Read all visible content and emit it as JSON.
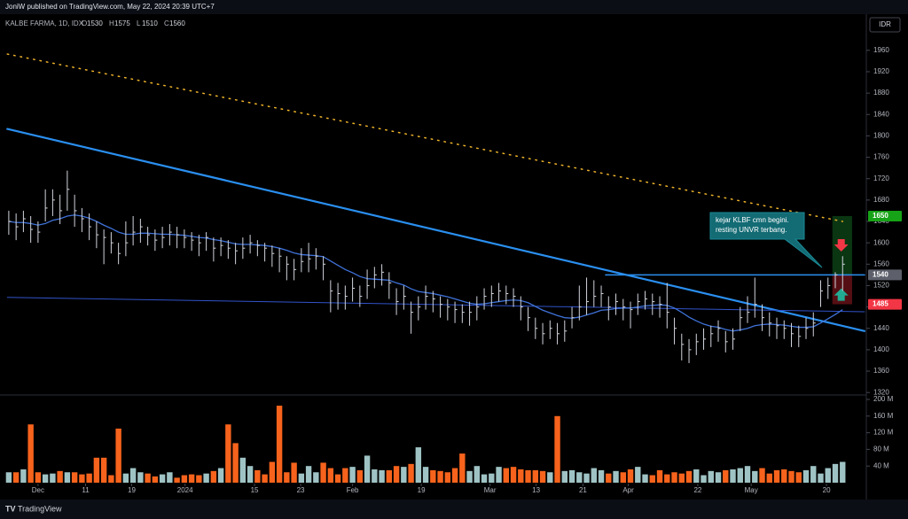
{
  "header": {
    "publisher": "JoniW published on TradingView.com, May 22, 2024 20:39 UTC+7",
    "brand": "TradingView"
  },
  "chart_data": {
    "type": "ohlc",
    "symbol": "KALBE FARMA, 1D, IDX",
    "ohlc": [
      {
        "label": "O",
        "value": 1530
      },
      {
        "label": "H",
        "value": 1575
      },
      {
        "label": "L",
        "value": 1510
      },
      {
        "label": "C",
        "value": 1560
      }
    ],
    "currency": "IDR",
    "xlim": [
      -1.2,
      117
    ],
    "xticks": [
      {
        "value": 4,
        "label": "Dec"
      },
      {
        "value": 10.5,
        "label": "11"
      },
      {
        "value": 16.8,
        "label": "19"
      },
      {
        "value": 24.1,
        "label": "2024"
      },
      {
        "value": 33.6,
        "label": "15"
      },
      {
        "value": 39.9,
        "label": "23"
      },
      {
        "value": 47,
        "label": "Feb"
      },
      {
        "value": 56.4,
        "label": "19"
      },
      {
        "value": 65.8,
        "label": "Mar"
      },
      {
        "value": 72.1,
        "label": "13"
      },
      {
        "value": 78.5,
        "label": "21"
      },
      {
        "value": 84.7,
        "label": "Apr"
      },
      {
        "value": 94.2,
        "label": "22"
      },
      {
        "value": 101.5,
        "label": "May"
      },
      {
        "value": 111.8,
        "label": "20"
      }
    ],
    "ylim": [
      1317,
      2021
    ],
    "yticks": [
      1320,
      1360,
      1400,
      1440,
      1480,
      1520,
      1560,
      1600,
      1640,
      1680,
      1720,
      1760,
      1800,
      1840,
      1880,
      1920,
      1960
    ],
    "bar_color": "#d1d4dc",
    "high": [
      1660,
      1655,
      1660,
      1650,
      1640,
      1700,
      1700,
      1690,
      1735,
      1690,
      1665,
      1655,
      1640,
      1625,
      1620,
      1600,
      1640,
      1650,
      1645,
      1630,
      1625,
      1630,
      1635,
      1630,
      1625,
      1620,
      1615,
      1620,
      1610,
      1610,
      1605,
      1600,
      1610,
      1615,
      1605,
      1600,
      1595,
      1590,
      1575,
      1570,
      1590,
      1600,
      1590,
      1575,
      1530,
      1525,
      1520,
      1535,
      1520,
      1550,
      1555,
      1560,
      1545,
      1515,
      1520,
      1490,
      1500,
      1520,
      1510,
      1500,
      1495,
      1490,
      1485,
      1490,
      1500,
      1515,
      1520,
      1525,
      1520,
      1515,
      1500,
      1480,
      1460,
      1450,
      1455,
      1450,
      1455,
      1480,
      1520,
      1535,
      1530,
      1520,
      1500,
      1505,
      1495,
      1490,
      1505,
      1510,
      1505,
      1500,
      1525,
      1460,
      1430,
      1420,
      1430,
      1440,
      1445,
      1455,
      1435,
      1440,
      1480,
      1500,
      1535,
      1485,
      1470,
      1460,
      1455,
      1450,
      1445,
      1460,
      1470,
      1530,
      1535,
      1545,
      1575
    ],
    "low": [
      1615,
      1605,
      1620,
      1600,
      1600,
      1640,
      1650,
      1635,
      1660,
      1630,
      1620,
      1605,
      1590,
      1560,
      1580,
      1560,
      1575,
      1595,
      1600,
      1595,
      1585,
      1590,
      1595,
      1590,
      1590,
      1585,
      1575,
      1585,
      1565,
      1575,
      1570,
      1560,
      1570,
      1580,
      1575,
      1565,
      1555,
      1545,
      1530,
      1530,
      1545,
      1545,
      1550,
      1530,
      1470,
      1475,
      1475,
      1490,
      1480,
      1495,
      1515,
      1520,
      1495,
      1465,
      1475,
      1430,
      1455,
      1475,
      1470,
      1460,
      1455,
      1450,
      1450,
      1445,
      1455,
      1475,
      1480,
      1490,
      1485,
      1480,
      1455,
      1435,
      1420,
      1410,
      1420,
      1410,
      1415,
      1440,
      1455,
      1465,
      1480,
      1480,
      1455,
      1465,
      1455,
      1440,
      1465,
      1475,
      1465,
      1460,
      1440,
      1410,
      1380,
      1375,
      1390,
      1400,
      1405,
      1415,
      1395,
      1400,
      1435,
      1450,
      1460,
      1435,
      1425,
      1420,
      1420,
      1405,
      1405,
      1420,
      1425,
      1480,
      1495,
      1515,
      1510
    ],
    "close": [
      1640,
      1630,
      1645,
      1625,
      1620,
      1665,
      1680,
      1660,
      1700,
      1660,
      1645,
      1630,
      1615,
      1610,
      1600,
      1580,
      1600,
      1620,
      1630,
      1615,
      1605,
      1610,
      1620,
      1615,
      1610,
      1605,
      1600,
      1610,
      1590,
      1595,
      1590,
      1585,
      1590,
      1600,
      1595,
      1590,
      1580,
      1575,
      1560,
      1550,
      1565,
      1570,
      1575,
      1560,
      1510,
      1505,
      1500,
      1515,
      1500,
      1520,
      1540,
      1545,
      1525,
      1490,
      1500,
      1470,
      1480,
      1500,
      1495,
      1485,
      1480,
      1475,
      1470,
      1470,
      1480,
      1500,
      1505,
      1510,
      1505,
      1500,
      1480,
      1460,
      1440,
      1430,
      1440,
      1430,
      1435,
      1460,
      1480,
      1490,
      1500,
      1505,
      1480,
      1490,
      1480,
      1475,
      1490,
      1495,
      1490,
      1485,
      1470,
      1440,
      1410,
      1400,
      1415,
      1420,
      1430,
      1440,
      1415,
      1420,
      1460,
      1470,
      1485,
      1460,
      1450,
      1445,
      1440,
      1430,
      1425,
      1440,
      1450,
      1510,
      1520,
      1540,
      1560
    ],
    "ma": {
      "color": "#3f72d9",
      "values": [
        1640,
        1638,
        1638,
        1636,
        1633,
        1636,
        1642,
        1645,
        1650,
        1652,
        1650,
        1646,
        1640,
        1633,
        1627,
        1620,
        1616,
        1616,
        1618,
        1618,
        1617,
        1616,
        1616,
        1615,
        1614,
        1612,
        1610,
        1609,
        1606,
        1604,
        1601,
        1598,
        1597,
        1597,
        1596,
        1595,
        1593,
        1590,
        1586,
        1581,
        1578,
        1577,
        1576,
        1574,
        1566,
        1558,
        1550,
        1544,
        1537,
        1533,
        1532,
        1531,
        1530,
        1525,
        1521,
        1514,
        1509,
        1507,
        1505,
        1502,
        1499,
        1495,
        1491,
        1487,
        1485,
        1486,
        1488,
        1490,
        1492,
        1493,
        1492,
        1488,
        1481,
        1474,
        1469,
        1464,
        1460,
        1459,
        1461,
        1465,
        1469,
        1474,
        1475,
        1477,
        1478,
        1478,
        1480,
        1482,
        1483,
        1484,
        1483,
        1478,
        1470,
        1461,
        1454,
        1448,
        1444,
        1442,
        1438,
        1435,
        1437,
        1440,
        1445,
        1447,
        1448,
        1447,
        1446,
        1444,
        1442,
        1442,
        1443,
        1450,
        1458,
        1466,
        1475
      ]
    },
    "volume": {
      "ylim": [
        0,
        200
      ],
      "yticks": [
        {
          "value": 40,
          "label": "40 M"
        },
        {
          "value": 80,
          "label": "80 M"
        },
        {
          "value": 120,
          "label": "120 M"
        },
        {
          "value": 160,
          "label": "160 M"
        },
        {
          "value": 200,
          "label": "200 M"
        }
      ],
      "up_color": "#9fc3c4",
      "down_color": "#f7631c",
      "values": [
        25,
        25,
        32,
        140,
        25,
        20,
        22,
        28,
        25,
        25,
        20,
        22,
        60,
        60,
        18,
        130,
        22,
        35,
        25,
        22,
        15,
        20,
        25,
        12,
        18,
        20,
        18,
        22,
        28,
        35,
        140,
        95,
        60,
        40,
        30,
        20,
        50,
        185,
        25,
        48,
        22,
        40,
        25,
        48,
        35,
        20,
        35,
        38,
        30,
        65,
        32,
        30,
        30,
        40,
        38,
        45,
        85,
        38,
        30,
        28,
        25,
        35,
        70,
        28,
        40,
        20,
        22,
        38,
        35,
        38,
        32,
        30,
        30,
        28,
        25,
        160,
        28,
        30,
        25,
        22,
        35,
        30,
        22,
        28,
        25,
        32,
        38,
        20,
        18,
        30,
        20,
        25,
        22,
        28,
        32,
        18,
        28,
        25,
        30,
        32,
        35,
        40,
        28,
        35,
        22,
        30,
        32,
        28,
        25,
        30,
        40,
        22,
        35,
        45,
        50
      ]
    },
    "lines": [
      {
        "x": [
          -0.2,
          117
        ],
        "y": [
          1813,
          1435
        ],
        "color": "#2a8ff0",
        "width": 2.2,
        "style": "solid"
      },
      {
        "x": [
          -0.2,
          114
        ],
        "y": [
          1953,
          1640
        ],
        "color": "#f0b429",
        "width": 1.5,
        "style": "dotted"
      },
      {
        "x": [
          -0.2,
          117
        ],
        "y": [
          1498,
          1471
        ],
        "color": "#3153c9",
        "width": 1,
        "style": "solid"
      },
      {
        "x": [
          81.6,
          117
        ],
        "y": [
          1540,
          1540
        ],
        "color": "#2a8ff0",
        "width": 1.6,
        "style": "solid"
      }
    ],
    "position": {
      "x": [
        112.6,
        115.3
      ],
      "entry": 1540,
      "target": 1650,
      "stop": 1485
    },
    "price_tags": [
      {
        "value": 1650,
        "color": "#17a317"
      },
      {
        "value": 1540,
        "color": "#5d606b"
      },
      {
        "value": 1485,
        "color": "#f23645"
      }
    ],
    "annotation": [
      "kejar KLBF cmn begini.",
      "resting UNVR terbang."
    ]
  }
}
